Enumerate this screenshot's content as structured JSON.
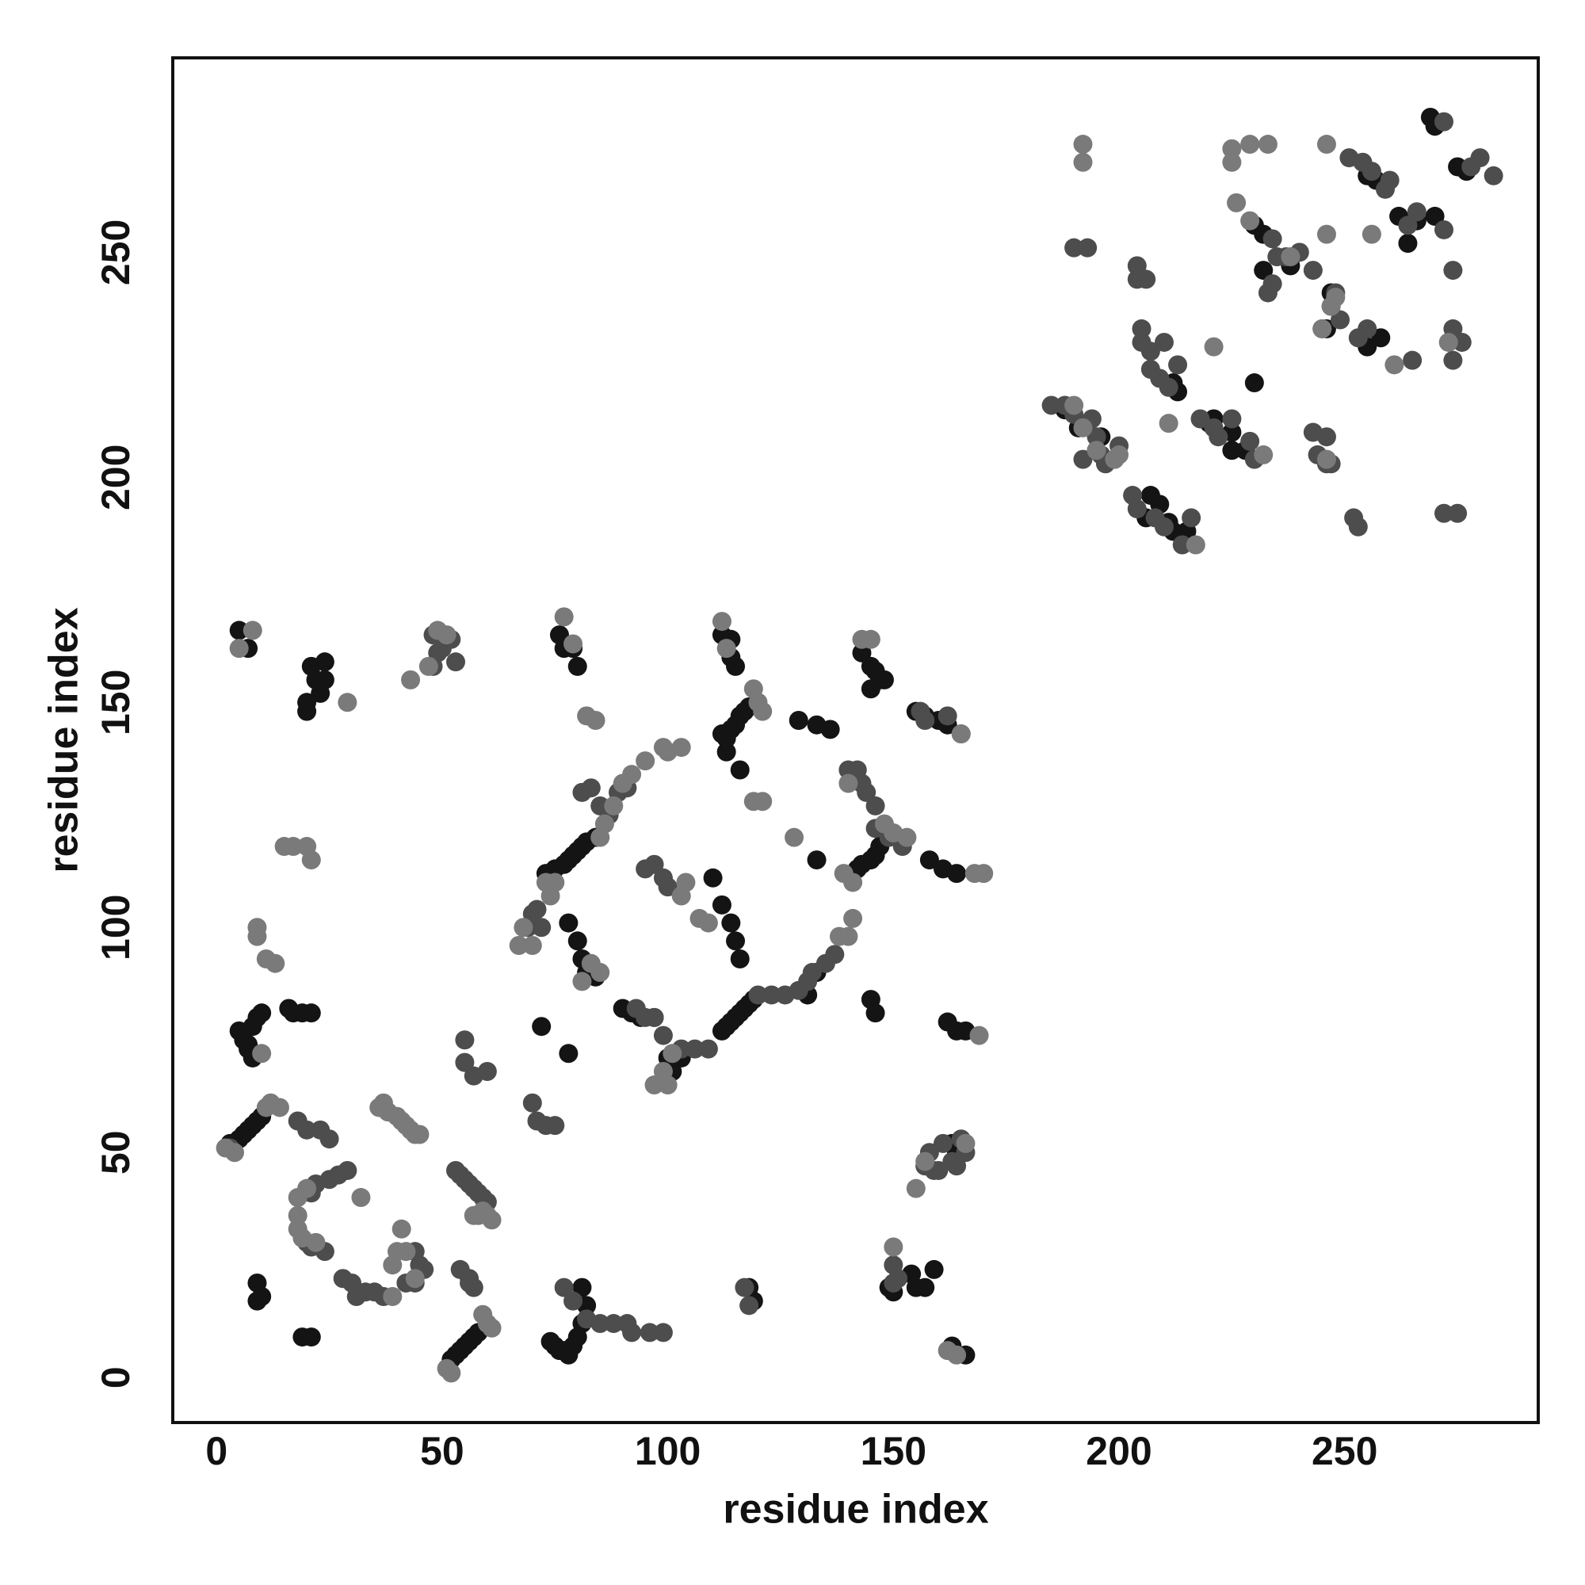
{
  "chart_data": {
    "type": "scatter",
    "xlabel": "residue index",
    "ylabel": "residue index",
    "xlim": [
      -9.7,
      292.9
    ],
    "ylim": [
      -10,
      293.2
    ],
    "xticks": [
      0,
      50,
      100,
      150,
      200,
      250
    ],
    "yticks": [
      0,
      50,
      100,
      150,
      200,
      250
    ],
    "series": [
      {
        "color": "#141414",
        "x": [
          5,
          7,
          5,
          6,
          7,
          8,
          9,
          10,
          7,
          8,
          3,
          5,
          6,
          7,
          8,
          9,
          10,
          9,
          10,
          9,
          21,
          22,
          24,
          24,
          23,
          20,
          20,
          16,
          17,
          19,
          21,
          19,
          21,
          52,
          53,
          54,
          55,
          56,
          57,
          58,
          74,
          75,
          76,
          77,
          78,
          79,
          80,
          81,
          82,
          81,
          72,
          78,
          76,
          77,
          79,
          80,
          73,
          75,
          77,
          78,
          79,
          80,
          81,
          82,
          84,
          78,
          80,
          81,
          82,
          84,
          90,
          92,
          94,
          97,
          100,
          101,
          103,
          112,
          113,
          114,
          115,
          116,
          117,
          118,
          119,
          112,
          114,
          114,
          115,
          112,
          113,
          114,
          115,
          116,
          117,
          118,
          116,
          113,
          110,
          112,
          114,
          115,
          116,
          143,
          145,
          146,
          147,
          148,
          145,
          142,
          143,
          145,
          146,
          147,
          148,
          133,
          155,
          157,
          160,
          162,
          158,
          161,
          164,
          162,
          164,
          166,
          145,
          146,
          154,
          155,
          157,
          159,
          150,
          149,
          163,
          166,
          163,
          164,
          129,
          133,
          136,
          133,
          131,
          118,
          119,
          232,
          238,
          246,
          247,
          255,
          257,
          262,
          266,
          270,
          269,
          270,
          275,
          277,
          264,
          258,
          255,
          213,
          212,
          206,
          207,
          209,
          211,
          212,
          215,
          220,
          221,
          225,
          228,
          230,
          232,
          230,
          195,
          196,
          191,
          188,
          225
        ],
        "y": [
          166,
          162,
          77,
          75,
          74,
          78,
          80,
          81,
          73,
          71,
          52,
          53,
          54,
          55,
          56,
          57,
          58,
          21,
          18,
          17,
          158,
          155,
          155,
          159,
          152,
          150,
          148,
          82,
          81,
          81,
          81,
          9,
          9,
          4,
          5,
          6,
          7,
          8,
          9,
          10,
          8,
          7,
          6,
          6,
          5,
          7,
          9,
          12,
          16,
          20,
          78,
          72,
          165,
          162,
          162,
          158,
          112,
          113,
          114,
          115,
          116,
          117,
          118,
          119,
          120,
          101,
          97,
          93,
          90,
          89,
          82,
          81,
          80,
          80,
          71,
          68,
          71,
          77,
          78,
          79,
          80,
          81,
          82,
          83,
          84,
          165,
          164,
          160,
          158,
          143,
          142,
          144,
          145,
          147,
          148,
          149,
          135,
          139,
          111,
          105,
          101,
          97,
          93,
          161,
          158,
          157,
          155,
          155,
          153,
          113,
          114,
          115,
          116,
          118,
          120,
          115,
          148,
          147,
          146,
          145,
          115,
          113,
          112,
          79,
          77,
          77,
          84,
          81,
          23,
          20,
          20,
          24,
          19,
          20,
          7,
          5,
          52,
          50,
          146,
          145,
          144,
          90,
          85,
          20,
          17,
          246,
          247,
          233,
          241,
          267,
          266,
          258,
          257,
          258,
          280,
          278,
          269,
          268,
          252,
          231,
          229,
          219,
          221,
          191,
          196,
          194,
          190,
          188,
          188,
          212,
          213,
          210,
          206,
          256,
          254,
          221,
          206,
          209,
          211,
          215,
          206
        ]
      },
      {
        "color": "#4d4d4d",
        "x": [
          3,
          20,
          21,
          24,
          21,
          22,
          25,
          27,
          29,
          18,
          20,
          23,
          25,
          28,
          30,
          31,
          33,
          35,
          37,
          44,
          45,
          46,
          42,
          44,
          48,
          49,
          50,
          52,
          53,
          48,
          53,
          54,
          55,
          56,
          57,
          58,
          59,
          60,
          55,
          55,
          57,
          60,
          54,
          56,
          56,
          57,
          69,
          70,
          71,
          72,
          70,
          71,
          73,
          75,
          77,
          79,
          82,
          85,
          88,
          91,
          92,
          96,
          99,
          81,
          83,
          85,
          87,
          89,
          91,
          95,
          97,
          99,
          100,
          93,
          95,
          97,
          99,
          103,
          106,
          109,
          120,
          123,
          126,
          129,
          131,
          132,
          135,
          137,
          140,
          142,
          143,
          144,
          146,
          149,
          151,
          152,
          146,
          156,
          157,
          162,
          165,
          163,
          164,
          165,
          166,
          161,
          158,
          159,
          157,
          160,
          150,
          151,
          150,
          117,
          118,
          190,
          193,
          204,
          204,
          206,
          205,
          205,
          207,
          207,
          209,
          210,
          213,
          211,
          216,
          208,
          210,
          214,
          203,
          204,
          195,
          196,
          197,
          199,
          200,
          192,
          194,
          185,
          188,
          190,
          218,
          221,
          222,
          225,
          229,
          230,
          234,
          235,
          237,
          240,
          243,
          245,
          247,
          249,
          248,
          251,
          254,
          256,
          259,
          260,
          264,
          266,
          272,
          274,
          276,
          253,
          255,
          265,
          272,
          278,
          280,
          283,
          234,
          233,
          243,
          244,
          246,
          247,
          246,
          252,
          253,
          272,
          275,
          274,
          274
        ],
        "y": [
          51,
          30,
          29,
          28,
          41,
          43,
          44,
          45,
          46,
          57,
          55,
          55,
          53,
          22,
          21,
          18,
          19,
          19,
          18,
          28,
          25,
          24,
          21,
          21,
          165,
          161,
          162,
          164,
          159,
          158,
          46,
          45,
          44,
          43,
          42,
          41,
          40,
          39,
          75,
          70,
          67,
          68,
          24,
          22,
          21,
          20,
          100,
          103,
          104,
          100,
          61,
          57,
          56,
          56,
          20,
          17,
          13,
          12,
          12,
          12,
          10,
          10,
          10,
          130,
          131,
          127,
          125,
          130,
          131,
          113,
          114,
          111,
          109,
          82,
          80,
          80,
          76,
          73,
          73,
          73,
          85,
          85,
          85,
          86,
          88,
          90,
          92,
          94,
          135,
          135,
          132,
          130,
          127,
          120,
          120,
          118,
          122,
          148,
          146,
          147,
          143,
          48,
          47,
          53,
          50,
          52,
          50,
          46,
          47,
          46,
          25,
          22,
          21,
          20,
          16,
          251,
          251,
          247,
          244,
          244,
          233,
          230,
          228,
          224,
          222,
          230,
          225,
          220,
          191,
          191,
          189,
          185,
          196,
          193,
          209,
          205,
          203,
          204,
          207,
          204,
          213,
          216,
          216,
          214,
          213,
          211,
          209,
          213,
          208,
          204,
          253,
          249,
          249,
          250,
          246,
          233,
          238,
          235,
          241,
          271,
          270,
          268,
          264,
          266,
          256,
          259,
          255,
          233,
          230,
          231,
          233,
          226,
          279,
          269,
          271,
          267,
          243,
          241,
          210,
          205,
          203,
          203,
          209,
          191,
          189,
          192,
          192,
          246,
          226
        ]
      },
      {
        "color": "#7a7a7a",
        "x": [
          2,
          4,
          11,
          12,
          14,
          9,
          9,
          11,
          13,
          5,
          8,
          10,
          18,
          18,
          18,
          20,
          19,
          22,
          32,
          29,
          15,
          17,
          20,
          21,
          36,
          37,
          38,
          40,
          41,
          42,
          43,
          44,
          45,
          40,
          41,
          39,
          42,
          44,
          39,
          49,
          51,
          47,
          43,
          51,
          52,
          57,
          58,
          59,
          60,
          61,
          60,
          61,
          59,
          67,
          68,
          70,
          73,
          74,
          75,
          77,
          79,
          82,
          84,
          85,
          86,
          88,
          90,
          92,
          95,
          99,
          100,
          103,
          81,
          83,
          85,
          97,
          99,
          100,
          101,
          104,
          103,
          107,
          109,
          112,
          113,
          119,
          120,
          121,
          119,
          121,
          128,
          143,
          145,
          140,
          139,
          141,
          138,
          140,
          141,
          148,
          150,
          153,
          166,
          165,
          168,
          170,
          169,
          150,
          155,
          157,
          164,
          162,
          192,
          192,
          225,
          225,
          229,
          233,
          246,
          226,
          229,
          238,
          247,
          246,
          261,
          273,
          256,
          190,
          192,
          195,
          199,
          200,
          211,
          217,
          221,
          232,
          246,
          245,
          248
        ],
        "y": [
          51,
          50,
          60,
          61,
          60,
          100,
          98,
          93,
          92,
          162,
          166,
          72,
          33,
          36,
          40,
          42,
          31,
          30,
          40,
          150,
          118,
          118,
          118,
          115,
          60,
          61,
          59,
          58,
          57,
          56,
          55,
          54,
          54,
          28,
          33,
          25,
          28,
          22,
          18,
          166,
          165,
          158,
          155,
          2,
          1,
          36,
          36,
          37,
          36,
          35,
          12,
          11,
          14,
          96,
          100,
          96,
          110,
          107,
          110,
          169,
          163,
          147,
          146,
          120,
          123,
          127,
          132,
          134,
          137,
          140,
          139,
          140,
          88,
          92,
          90,
          65,
          68,
          65,
          72,
          110,
          107,
          102,
          101,
          168,
          162,
          153,
          150,
          148,
          128,
          128,
          120,
          164,
          164,
          132,
          112,
          110,
          98,
          98,
          102,
          123,
          121,
          120,
          52,
          143,
          112,
          112,
          76,
          29,
          42,
          48,
          5,
          6,
          274,
          270,
          273,
          270,
          274,
          274,
          274,
          261,
          257,
          249,
          238,
          254,
          225,
          230,
          254,
          216,
          211,
          206,
          204,
          205,
          212,
          185,
          229,
          205,
          204,
          233,
          240
        ]
      }
    ]
  }
}
